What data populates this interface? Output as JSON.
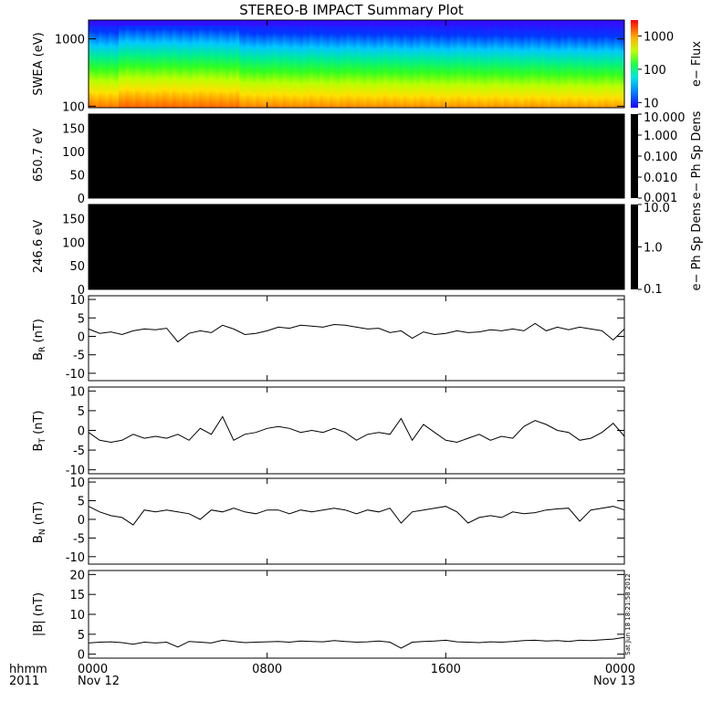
{
  "title": "STEREO-B IMPACT Summary Plot",
  "timestamp_note": "Sat Jun 18 18:21:58 2012",
  "colors": {
    "background": "#ffffff",
    "axis": "#000000",
    "line": "#000000",
    "empty_panel": "#000000"
  },
  "time_axis": {
    "units_label": "hhmm",
    "year_label": "2011",
    "range_hours": [
      0,
      24
    ],
    "ticks": [
      {
        "hour": 0,
        "label": "0000",
        "sublabel": "Nov 12"
      },
      {
        "hour": 8,
        "label": "0800",
        "sublabel": ""
      },
      {
        "hour": 16,
        "label": "1600",
        "sublabel": ""
      },
      {
        "hour": 24,
        "label": "0000",
        "sublabel": "Nov 13"
      }
    ]
  },
  "chart_data": [
    {
      "type": "heatmap",
      "id": "swea",
      "ylabel": "SWEA (eV)",
      "yscale": "log",
      "ylim": [
        95,
        1900
      ],
      "yticks": [
        {
          "value": 100,
          "label": "100"
        },
        {
          "value": 1000,
          "label": "1000"
        }
      ],
      "colorbar": {
        "label": "e− Flux",
        "scale": "log",
        "range": [
          7,
          3000
        ],
        "ticks": [
          {
            "value": 10,
            "label": "10"
          },
          {
            "value": 100,
            "label": "100"
          },
          {
            "value": 1000,
            "label": "1000"
          }
        ],
        "colormap": "rainbow"
      }
    },
    {
      "type": "heatmap",
      "id": "pad650",
      "ylabel": "650.7 eV",
      "ylim": [
        0,
        180
      ],
      "yticks": [
        {
          "value": 0,
          "label": "0"
        },
        {
          "value": 50,
          "label": "50"
        },
        {
          "value": 100,
          "label": "100"
        },
        {
          "value": 150,
          "label": "150"
        }
      ],
      "note": "panel filled black (no data)",
      "colorbar": {
        "label": "e− Ph Sp Dens",
        "scale": "log",
        "range": [
          0.001,
          10
        ],
        "ticks": [
          {
            "value": 10,
            "label": "10.000"
          },
          {
            "value": 1,
            "label": "1.000"
          },
          {
            "value": 0.1,
            "label": "0.100"
          },
          {
            "value": 0.01,
            "label": "0.010"
          },
          {
            "value": 0.001,
            "label": "0.001"
          }
        ]
      }
    },
    {
      "type": "heatmap",
      "id": "pad246",
      "ylabel": "246.6 eV",
      "ylim": [
        0,
        180
      ],
      "yticks": [
        {
          "value": 0,
          "label": "0"
        },
        {
          "value": 50,
          "label": "50"
        },
        {
          "value": 100,
          "label": "100"
        },
        {
          "value": 150,
          "label": "150"
        }
      ],
      "note": "panel filled black (no data)",
      "colorbar": {
        "label": "e− Ph Sp Dens",
        "scale": "log",
        "range": [
          0.1,
          10
        ],
        "ticks": [
          {
            "value": 10,
            "label": "10.0"
          },
          {
            "value": 1,
            "label": "1.0"
          },
          {
            "value": 0.1,
            "label": "0.1"
          }
        ]
      }
    },
    {
      "type": "line",
      "id": "br",
      "ylabel": "B_R (nT)",
      "ylim": [
        -12,
        11
      ],
      "yticks": [
        {
          "value": -10,
          "label": "-10"
        },
        {
          "value": -5,
          "label": "-5"
        },
        {
          "value": 0,
          "label": "0"
        },
        {
          "value": 5,
          "label": "5"
        },
        {
          "value": 10,
          "label": "10"
        }
      ],
      "x_hours": [
        0,
        0.5,
        1,
        1.5,
        2,
        2.5,
        3,
        3.5,
        4,
        4.5,
        5,
        5.5,
        6,
        6.5,
        7,
        7.5,
        8,
        8.5,
        9,
        9.5,
        10,
        10.5,
        11,
        11.5,
        12,
        12.5,
        13,
        13.5,
        14,
        14.5,
        15,
        15.5,
        16,
        16.5,
        17,
        17.5,
        18,
        18.5,
        19,
        19.5,
        20,
        20.5,
        21,
        21.5,
        22,
        22.5,
        23,
        23.5,
        24
      ],
      "y": [
        2.0,
        0.8,
        1.2,
        0.5,
        1.5,
        2.0,
        1.8,
        2.2,
        -1.5,
        0.8,
        1.5,
        1.0,
        3.0,
        2.0,
        0.5,
        0.8,
        1.5,
        2.5,
        2.2,
        3.0,
        2.8,
        2.5,
        3.2,
        3.0,
        2.5,
        2.0,
        2.2,
        1.0,
        1.5,
        -0.5,
        1.2,
        0.5,
        0.8,
        1.5,
        1.0,
        1.2,
        1.8,
        1.5,
        2.0,
        1.5,
        3.5,
        1.5,
        2.5,
        1.8,
        2.5,
        2.0,
        1.5,
        -1.0,
        2.0
      ]
    },
    {
      "type": "line",
      "id": "bt",
      "ylabel": "B_T (nT)",
      "ylim": [
        -11,
        11
      ],
      "yticks": [
        {
          "value": -10,
          "label": "-10"
        },
        {
          "value": -5,
          "label": "-5"
        },
        {
          "value": 0,
          "label": "0"
        },
        {
          "value": 5,
          "label": "5"
        },
        {
          "value": 10,
          "label": "10"
        }
      ],
      "x_hours": [
        0,
        0.5,
        1,
        1.5,
        2,
        2.5,
        3,
        3.5,
        4,
        4.5,
        5,
        5.5,
        6,
        6.5,
        7,
        7.5,
        8,
        8.5,
        9,
        9.5,
        10,
        10.5,
        11,
        11.5,
        12,
        12.5,
        13,
        13.5,
        14,
        14.5,
        15,
        15.5,
        16,
        16.5,
        17,
        17.5,
        18,
        18.5,
        19,
        19.5,
        20,
        20.5,
        21,
        21.5,
        22,
        22.5,
        23,
        23.5,
        24
      ],
      "y": [
        -0.5,
        -2.5,
        -3.0,
        -2.5,
        -1.0,
        -2.0,
        -1.5,
        -2.0,
        -1.0,
        -2.5,
        0.5,
        -1.0,
        3.5,
        -2.5,
        -1.0,
        -0.5,
        0.5,
        1.0,
        0.5,
        -0.5,
        0.0,
        -0.5,
        0.5,
        -0.5,
        -2.5,
        -1.0,
        -0.5,
        -1.0,
        3.0,
        -2.5,
        1.5,
        -0.5,
        -2.5,
        -3.0,
        -2.0,
        -1.0,
        -2.5,
        -1.5,
        -2.0,
        1.0,
        2.5,
        1.5,
        0.0,
        -0.5,
        -2.5,
        -2.0,
        -0.5,
        1.8,
        -1.5
      ]
    },
    {
      "type": "line",
      "id": "bn",
      "ylabel": "B_N (nT)",
      "ylim": [
        -12,
        11
      ],
      "yticks": [
        {
          "value": -10,
          "label": "-10"
        },
        {
          "value": -5,
          "label": "-5"
        },
        {
          "value": 0,
          "label": "0"
        },
        {
          "value": 5,
          "label": "5"
        },
        {
          "value": 10,
          "label": "10"
        }
      ],
      "x_hours": [
        0,
        0.5,
        1,
        1.5,
        2,
        2.5,
        3,
        3.5,
        4,
        4.5,
        5,
        5.5,
        6,
        6.5,
        7,
        7.5,
        8,
        8.5,
        9,
        9.5,
        10,
        10.5,
        11,
        11.5,
        12,
        12.5,
        13,
        13.5,
        14,
        14.5,
        15,
        15.5,
        16,
        16.5,
        17,
        17.5,
        18,
        18.5,
        19,
        19.5,
        20,
        20.5,
        21,
        21.5,
        22,
        22.5,
        23,
        23.5,
        24
      ],
      "y": [
        3.5,
        2.0,
        1.0,
        0.5,
        -1.5,
        2.5,
        2.0,
        2.5,
        2.0,
        1.5,
        0.0,
        2.5,
        2.0,
        3.0,
        2.0,
        1.5,
        2.5,
        2.5,
        1.5,
        2.5,
        2.0,
        2.5,
        3.0,
        2.5,
        1.5,
        2.5,
        2.0,
        3.0,
        -1.0,
        2.0,
        2.5,
        3.0,
        3.5,
        2.0,
        -1.0,
        0.5,
        1.0,
        0.5,
        2.0,
        1.5,
        1.8,
        2.5,
        2.8,
        3.0,
        -0.5,
        2.5,
        3.0,
        3.5,
        2.5
      ]
    },
    {
      "type": "line",
      "id": "bmag",
      "ylabel": "|B| (nT)",
      "ylim": [
        -1,
        21
      ],
      "yticks": [
        {
          "value": 0,
          "label": "0"
        },
        {
          "value": 5,
          "label": "5"
        },
        {
          "value": 10,
          "label": "10"
        },
        {
          "value": 15,
          "label": "15"
        },
        {
          "value": 20,
          "label": "20"
        }
      ],
      "x_hours": [
        0,
        0.5,
        1,
        1.5,
        2,
        2.5,
        3,
        3.5,
        4,
        4.5,
        5,
        5.5,
        6,
        6.5,
        7,
        7.5,
        8,
        8.5,
        9,
        9.5,
        10,
        10.5,
        11,
        11.5,
        12,
        12.5,
        13,
        13.5,
        14,
        14.5,
        15,
        15.5,
        16,
        16.5,
        17,
        17.5,
        18,
        18.5,
        19,
        19.5,
        20,
        20.5,
        21,
        21.5,
        22,
        22.5,
        23,
        23.5,
        24
      ],
      "y": [
        2.8,
        3.0,
        3.1,
        2.9,
        2.5,
        3.0,
        2.8,
        3.0,
        1.8,
        3.2,
        3.0,
        2.8,
        3.5,
        3.2,
        2.9,
        3.0,
        3.1,
        3.2,
        3.0,
        3.3,
        3.2,
        3.1,
        3.4,
        3.2,
        3.0,
        3.1,
        3.3,
        3.0,
        1.5,
        3.0,
        3.2,
        3.3,
        3.5,
        3.1,
        3.0,
        2.9,
        3.1,
        3.0,
        3.2,
        3.4,
        3.5,
        3.3,
        3.4,
        3.2,
        3.5,
        3.4,
        3.6,
        3.8,
        4.2
      ]
    }
  ]
}
